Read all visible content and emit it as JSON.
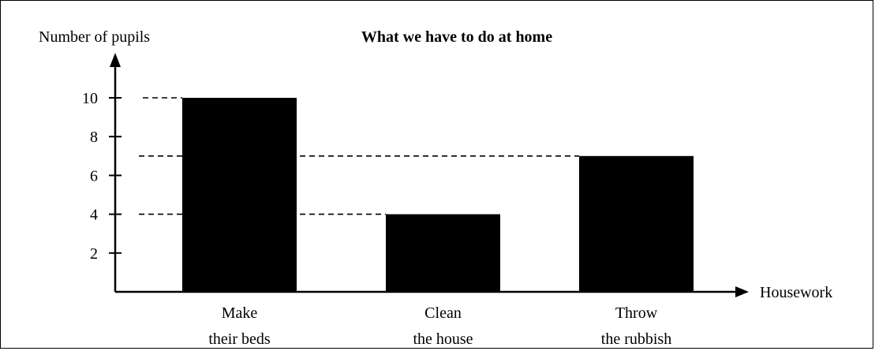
{
  "chart_data": {
    "type": "bar",
    "title": "What we have to do at home",
    "ylabel": "Number of pupils",
    "xlabel": "Housework",
    "categories": [
      [
        "Make",
        "their beds"
      ],
      [
        "Clean",
        "the house"
      ],
      [
        "Throw",
        "the rubbish"
      ]
    ],
    "values": [
      10,
      4,
      7
    ],
    "yticks": [
      2,
      4,
      6,
      8,
      10
    ],
    "ylim": [
      0,
      12
    ],
    "grid": false,
    "reference_lines": "dashed lines from y-axis to each bar top",
    "bar_color": "#000000"
  }
}
